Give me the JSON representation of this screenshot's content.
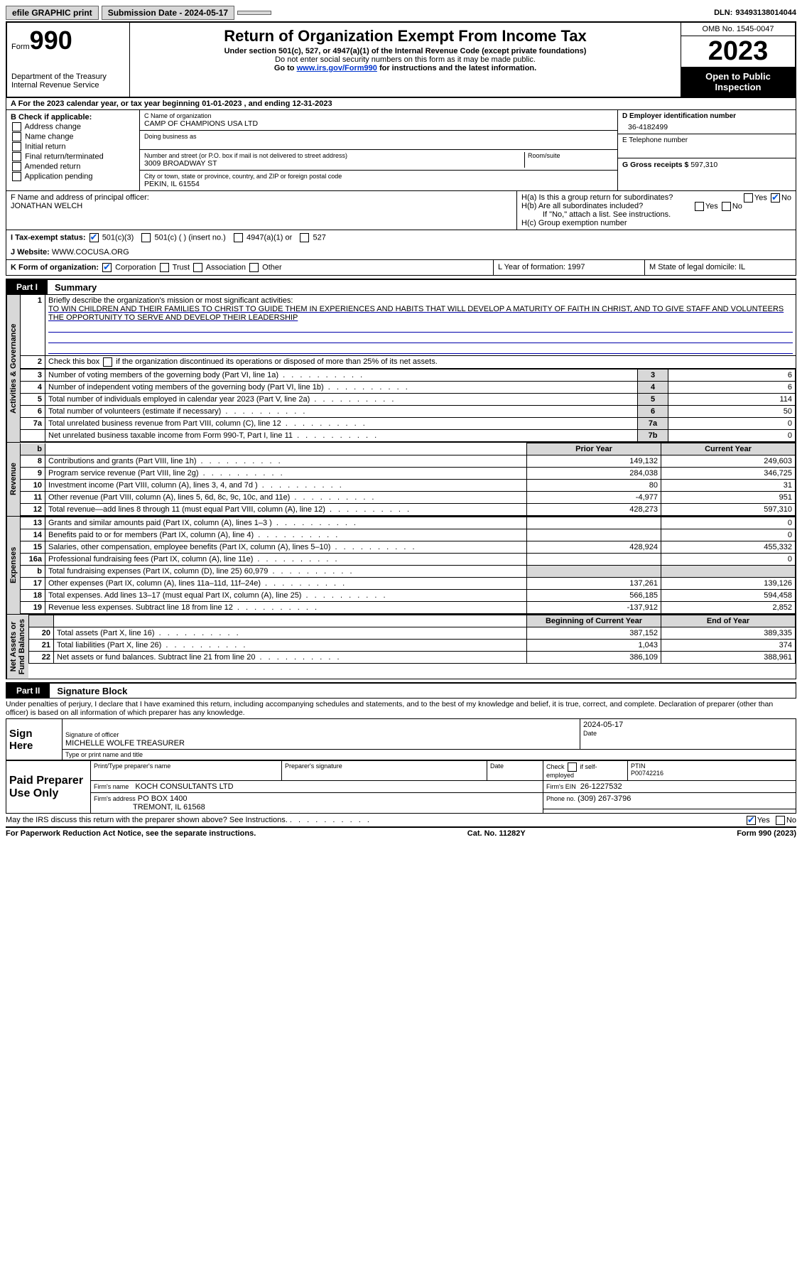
{
  "topbar": {
    "efile": "efile GRAPHIC print",
    "submission": "Submission Date - 2024-05-17",
    "dln_label": "DLN:",
    "dln": "93493138014044"
  },
  "header": {
    "form_word": "Form",
    "form_no": "990",
    "dept": "Department of the Treasury",
    "irs": "Internal Revenue Service",
    "title": "Return of Organization Exempt From Income Tax",
    "sub1": "Under section 501(c), 527, or 4947(a)(1) of the Internal Revenue Code (except private foundations)",
    "sub2": "Do not enter social security numbers on this form as it may be made public.",
    "sub3_pre": "Go to ",
    "sub3_link": "www.irs.gov/Form990",
    "sub3_post": " for instructions and the latest information.",
    "omb": "OMB No. 1545-0047",
    "year": "2023",
    "inspect": "Open to Public Inspection"
  },
  "rowA": "A  For the 2023 calendar year, or tax year beginning 01-01-2023   , and ending 12-31-2023",
  "colB": {
    "hdr": "B Check if applicable:",
    "items": [
      "Address change",
      "Name change",
      "Initial return",
      "Final return/terminated",
      "Amended return",
      "Application pending"
    ]
  },
  "colC": {
    "name_lbl": "C Name of organization",
    "name": "CAMP OF CHAMPIONS USA LTD",
    "dba_lbl": "Doing business as",
    "street_lbl": "Number and street (or P.O. box if mail is not delivered to street address)",
    "room_lbl": "Room/suite",
    "street": "3009 BROADWAY ST",
    "city_lbl": "City or town, state or province, country, and ZIP or foreign postal code",
    "city": "PEKIN, IL  61554"
  },
  "colDE": {
    "d_lbl": "D Employer identification number",
    "d_val": "36-4182499",
    "e_lbl": "E Telephone number",
    "g_lbl": "G Gross receipts $",
    "g_val": "597,310"
  },
  "rowF": {
    "f_lbl": "F  Name and address of principal officer:",
    "f_val": "JONATHAN WELCH",
    "ha": "H(a)  Is this a group return for subordinates?",
    "hb": "H(b)  Are all subordinates included?",
    "hb_note": "If \"No,\" attach a list. See instructions.",
    "hc": "H(c)  Group exemption number",
    "yes": "Yes",
    "no": "No"
  },
  "rowI": {
    "lbl": "I    Tax-exempt status:",
    "opts": [
      "501(c)(3)",
      "501(c) (  ) (insert no.)",
      "4947(a)(1) or",
      "527"
    ]
  },
  "rowJ": {
    "lbl": "J   Website:",
    "val": "WWW.COCUSA.ORG"
  },
  "rowK": {
    "lbl": "K Form of organization:",
    "opts": [
      "Corporation",
      "Trust",
      "Association",
      "Other"
    ],
    "L": "L Year of formation: 1997",
    "M": "M State of legal domicile: IL"
  },
  "partI": {
    "tag": "Part I",
    "title": "Summary"
  },
  "gov": {
    "tab": "Activities & Governance",
    "l1_lbl": "Briefly describe the organization's mission or most significant activities:",
    "l1_val": "TO WIN CHILDREN AND THEIR FAMILIES TO CHRIST TO GUIDE THEM IN EXPERIENCES AND HABITS THAT WILL DEVELOP A MATURITY OF FAITH IN CHRIST, AND TO GIVE STAFF AND VOLUNTEERS THE OPPORTUNITY TO SERVE AND DEVELOP THEIR LEADERSHIP",
    "l2": "Check this box      if the organization discontinued its operations or disposed of more than 25% of its net assets.",
    "rows": [
      {
        "n": "3",
        "lbl": "Number of voting members of the governing body (Part VI, line 1a)",
        "box": "3",
        "v": "6"
      },
      {
        "n": "4",
        "lbl": "Number of independent voting members of the governing body (Part VI, line 1b)",
        "box": "4",
        "v": "6"
      },
      {
        "n": "5",
        "lbl": "Total number of individuals employed in calendar year 2023 (Part V, line 2a)",
        "box": "5",
        "v": "114"
      },
      {
        "n": "6",
        "lbl": "Total number of volunteers (estimate if necessary)",
        "box": "6",
        "v": "50"
      },
      {
        "n": "7a",
        "lbl": "Total unrelated business revenue from Part VIII, column (C), line 12",
        "box": "7a",
        "v": "0"
      },
      {
        "n": "",
        "lbl": "Net unrelated business taxable income from Form 990-T, Part I, line 11",
        "box": "7b",
        "v": "0"
      }
    ]
  },
  "rev": {
    "tab": "Revenue",
    "hdr_prior": "Prior Year",
    "hdr_cur": "Current Year",
    "rows": [
      {
        "n": "8",
        "lbl": "Contributions and grants (Part VIII, line 1h)",
        "p": "149,132",
        "c": "249,603"
      },
      {
        "n": "9",
        "lbl": "Program service revenue (Part VIII, line 2g)",
        "p": "284,038",
        "c": "346,725"
      },
      {
        "n": "10",
        "lbl": "Investment income (Part VIII, column (A), lines 3, 4, and 7d )",
        "p": "80",
        "c": "31"
      },
      {
        "n": "11",
        "lbl": "Other revenue (Part VIII, column (A), lines 5, 6d, 8c, 9c, 10c, and 11e)",
        "p": "-4,977",
        "c": "951"
      },
      {
        "n": "12",
        "lbl": "Total revenue—add lines 8 through 11 (must equal Part VIII, column (A), line 12)",
        "p": "428,273",
        "c": "597,310"
      }
    ]
  },
  "exp": {
    "tab": "Expenses",
    "rows": [
      {
        "n": "13",
        "lbl": "Grants and similar amounts paid (Part IX, column (A), lines 1–3 )",
        "p": "",
        "c": "0"
      },
      {
        "n": "14",
        "lbl": "Benefits paid to or for members (Part IX, column (A), line 4)",
        "p": "",
        "c": "0"
      },
      {
        "n": "15",
        "lbl": "Salaries, other compensation, employee benefits (Part IX, column (A), lines 5–10)",
        "p": "428,924",
        "c": "455,332"
      },
      {
        "n": "16a",
        "lbl": "Professional fundraising fees (Part IX, column (A), line 11e)",
        "p": "",
        "c": "0"
      },
      {
        "n": "b",
        "lbl": "Total fundraising expenses (Part IX, column (D), line 25) 60,979",
        "p": "shade",
        "c": "shade"
      },
      {
        "n": "17",
        "lbl": "Other expenses (Part IX, column (A), lines 11a–11d, 11f–24e)",
        "p": "137,261",
        "c": "139,126"
      },
      {
        "n": "18",
        "lbl": "Total expenses. Add lines 13–17 (must equal Part IX, column (A), line 25)",
        "p": "566,185",
        "c": "594,458"
      },
      {
        "n": "19",
        "lbl": "Revenue less expenses. Subtract line 18 from line 12",
        "p": "-137,912",
        "c": "2,852"
      }
    ]
  },
  "net": {
    "tab": "Net Assets or\nFund Balances",
    "hdr_beg": "Beginning of Current Year",
    "hdr_end": "End of Year",
    "rows": [
      {
        "n": "20",
        "lbl": "Total assets (Part X, line 16)",
        "p": "387,152",
        "c": "389,335"
      },
      {
        "n": "21",
        "lbl": "Total liabilities (Part X, line 26)",
        "p": "1,043",
        "c": "374"
      },
      {
        "n": "22",
        "lbl": "Net assets or fund balances. Subtract line 21 from line 20",
        "p": "386,109",
        "c": "388,961"
      }
    ]
  },
  "partII": {
    "tag": "Part II",
    "title": "Signature Block"
  },
  "sig": {
    "decl": "Under penalties of perjury, I declare that I have examined this return, including accompanying schedules and statements, and to the best of my knowledge and belief, it is true, correct, and complete. Declaration of preparer (other than officer) is based on all information of which preparer has any knowledge.",
    "sign_here": "Sign Here",
    "sig_officer": "Signature of officer",
    "date": "2024-05-17",
    "name": "MICHELLE WOLFE TREASURER",
    "type_lbl": "Type or print name and title",
    "paid": "Paid Preparer Use Only",
    "prep_name_lbl": "Print/Type preparer's name",
    "prep_sig_lbl": "Preparer's signature",
    "date_lbl": "Date",
    "check_lbl": "Check       if self-employed",
    "ptin_lbl": "PTIN",
    "ptin": "P00742216",
    "firm_name_lbl": "Firm's name",
    "firm_name": "KOCH CONSULTANTS LTD",
    "firm_ein_lbl": "Firm's EIN",
    "firm_ein": "26-1227532",
    "firm_addr_lbl": "Firm's address",
    "firm_addr": "PO BOX 1400",
    "firm_city": "TREMONT, IL  61568",
    "phone_lbl": "Phone no.",
    "phone": "(309) 267-3796",
    "discuss": "May the IRS discuss this return with the preparer shown above? See Instructions."
  },
  "footer": {
    "left": "For Paperwork Reduction Act Notice, see the separate instructions.",
    "mid": "Cat. No. 11282Y",
    "right": "Form 990 (2023)"
  }
}
